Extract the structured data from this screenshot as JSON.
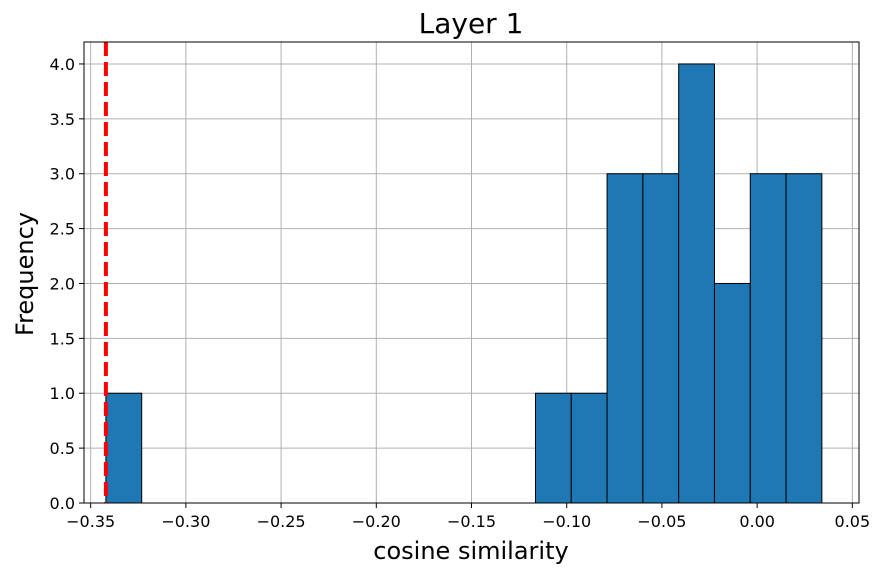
{
  "chart_data": {
    "type": "bar",
    "title": "Layer 1",
    "xlabel": "cosine similarity",
    "ylabel": "Frequency",
    "xlim": [
      -0.3535,
      0.0535
    ],
    "ylim": [
      0,
      4.2
    ],
    "x_ticks": [
      -0.35,
      -0.3,
      -0.25,
      -0.2,
      -0.15,
      -0.1,
      -0.05,
      0.0,
      0.05
    ],
    "x_tick_labels": [
      "−0.35",
      "−0.30",
      "−0.25",
      "−0.20",
      "−0.15",
      "−0.10",
      "−0.05",
      "0.00",
      "0.05"
    ],
    "y_ticks": [
      0,
      0.5,
      1.0,
      1.5,
      2.0,
      2.5,
      3.0,
      3.5,
      4.0
    ],
    "y_tick_labels": [
      "0.0",
      "0.5",
      "1.0",
      "1.5",
      "2.0",
      "2.5",
      "3.0",
      "3.5",
      "4.0"
    ],
    "grid": true,
    "bar_color": "#1f77b4",
    "bar_edge_color": "#000000",
    "bins": [
      {
        "x0": -0.342,
        "x1": -0.3232,
        "count": 1
      },
      {
        "x0": -0.1164,
        "x1": -0.0976,
        "count": 1
      },
      {
        "x0": -0.0976,
        "x1": -0.0788,
        "count": 1
      },
      {
        "x0": -0.0788,
        "x1": -0.06,
        "count": 3
      },
      {
        "x0": -0.06,
        "x1": -0.0412,
        "count": 3
      },
      {
        "x0": -0.0412,
        "x1": -0.0224,
        "count": 4
      },
      {
        "x0": -0.0224,
        "x1": -0.0036,
        "count": 2
      },
      {
        "x0": -0.0036,
        "x1": 0.0152,
        "count": 3
      },
      {
        "x0": 0.0152,
        "x1": 0.034,
        "count": 3
      }
    ],
    "reference_line": {
      "x": -0.342,
      "color": "#ff0000",
      "style": "dashed"
    }
  }
}
